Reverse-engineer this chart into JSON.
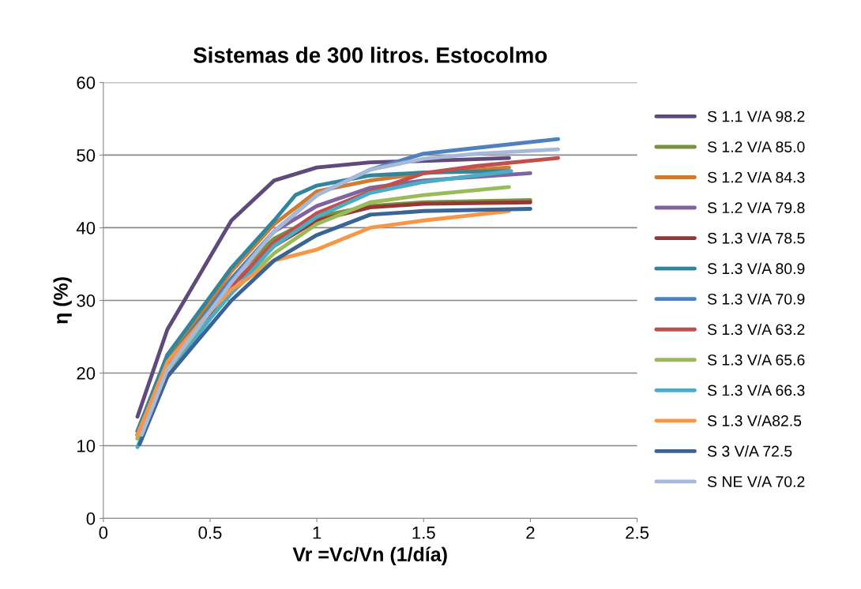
{
  "chart_data": {
    "type": "line",
    "title": "Sistemas de 300 litros. Estocolmo",
    "xlabel": "Vr =Vc/Vn (1/día)",
    "ylabel": "η (%)",
    "xlim": [
      0,
      2.5
    ],
    "ylim": [
      0,
      60
    ],
    "xticks": [
      0,
      0.5,
      1,
      1.5,
      2,
      2.5
    ],
    "yticks": [
      0,
      10,
      20,
      30,
      40,
      50,
      60
    ],
    "grid": "y",
    "legend": "right",
    "marker": "none",
    "line_style": "solid",
    "series": [
      {
        "name": "S 1.1 V/A 98.2",
        "color": "#604a7b",
        "x": [
          0.16,
          0.3,
          0.5,
          0.6,
          0.8,
          1.0,
          1.25,
          1.5,
          1.9
        ],
        "values": [
          14,
          26,
          36,
          41,
          46.5,
          48.3,
          49,
          49.2,
          49.6
        ]
      },
      {
        "name": "S 1.2 V/A 85.0",
        "color": "#77933c",
        "x": [
          0.16,
          0.3,
          0.5,
          0.6,
          0.8,
          1.0,
          1.25,
          1.5,
          2.0
        ],
        "values": [
          12,
          22,
          29.5,
          33,
          38.5,
          41.5,
          43,
          43.5,
          43.8
        ]
      },
      {
        "name": "S 1.2 V/A 84.3",
        "color": "#d07b2f",
        "x": [
          0.16,
          0.3,
          0.5,
          0.6,
          0.8,
          1.0,
          1.25,
          1.5,
          1.9
        ],
        "values": [
          12,
          22.5,
          30,
          34,
          40.5,
          45,
          46.5,
          47.5,
          48.3
        ]
      },
      {
        "name": "S 1.2 V/A 79.8",
        "color": "#8064a2",
        "x": [
          0.16,
          0.3,
          0.5,
          0.6,
          0.8,
          1.0,
          1.25,
          1.5,
          2.0
        ],
        "values": [
          11.5,
          21.5,
          29,
          33,
          39.5,
          43,
          45.5,
          46.5,
          47.5
        ]
      },
      {
        "name": "S 1.3 V/A 78.5",
        "color": "#953735",
        "x": [
          0.16,
          0.3,
          0.5,
          0.6,
          0.8,
          1.0,
          1.25,
          1.5,
          2.0
        ],
        "values": [
          11.5,
          21,
          28,
          32,
          37.5,
          41,
          42.8,
          43.3,
          43.5
        ]
      },
      {
        "name": "S 1.3 V/A 80.9",
        "color": "#31859c",
        "x": [
          0.16,
          0.3,
          0.5,
          0.6,
          0.8,
          0.9,
          1.0,
          1.25,
          1.5,
          1.9
        ],
        "values": [
          12,
          22.5,
          30.5,
          34.5,
          41,
          44.5,
          45.8,
          47.2,
          47.6,
          47.8
        ]
      },
      {
        "name": "S 1.3 V/A 70.9",
        "color": "#4f81bd",
        "x": [
          0.16,
          0.3,
          0.5,
          0.6,
          0.8,
          1.0,
          1.25,
          1.5,
          1.75,
          2.13
        ],
        "values": [
          11,
          21,
          29,
          33,
          39.5,
          44.5,
          48,
          50.2,
          51,
          52.2
        ]
      },
      {
        "name": "S 1.3 V/A 63.2",
        "color": "#c0504d",
        "x": [
          0.16,
          0.3,
          0.5,
          0.6,
          0.8,
          1.0,
          1.25,
          1.5,
          1.75,
          2.13
        ],
        "values": [
          11.5,
          21,
          28.5,
          32,
          38,
          42,
          45,
          47.5,
          48.5,
          49.6
        ]
      },
      {
        "name": "S 1.3 V/A 65.6",
        "color": "#9bbb59",
        "x": [
          0.16,
          0.3,
          0.5,
          0.6,
          0.8,
          1.0,
          1.25,
          1.5,
          1.9
        ],
        "values": [
          11,
          20.5,
          27.5,
          31,
          36.5,
          40.5,
          43.5,
          44.5,
          45.6
        ]
      },
      {
        "name": "S 1.3 V/A 66.3",
        "color": "#4bacc6",
        "x": [
          0.16,
          0.3,
          0.5,
          0.6,
          0.8,
          1.0,
          1.25,
          1.5,
          1.91
        ],
        "values": [
          9.8,
          19.5,
          27.5,
          31,
          37.5,
          41.5,
          44.8,
          46.3,
          47.8
        ]
      },
      {
        "name": "S 1.3 V/A82.5",
        "color": "#f79646",
        "x": [
          0.16,
          0.3,
          0.5,
          0.6,
          0.8,
          1.0,
          1.25,
          1.5,
          1.9
        ],
        "values": [
          11.5,
          21.5,
          28.5,
          31.5,
          35.5,
          37,
          40,
          41,
          42.3
        ]
      },
      {
        "name": "S 3 V/A 72.5",
        "color": "#3a6496",
        "x": [
          0.17,
          0.3,
          0.5,
          0.6,
          0.8,
          1.0,
          1.25,
          1.5,
          2.0
        ],
        "values": [
          10.2,
          19.5,
          26.5,
          30,
          35.5,
          39,
          41.8,
          42.3,
          42.6
        ]
      },
      {
        "name": "S NE V/A 70.2",
        "color": "#a6b9d9",
        "x": [
          0.18,
          0.3,
          0.5,
          0.6,
          0.8,
          1.0,
          1.25,
          1.5,
          1.75,
          2.13
        ],
        "values": [
          11.5,
          20.5,
          28.5,
          32.5,
          39.5,
          44.5,
          48,
          49.5,
          50.2,
          50.8
        ]
      }
    ]
  }
}
